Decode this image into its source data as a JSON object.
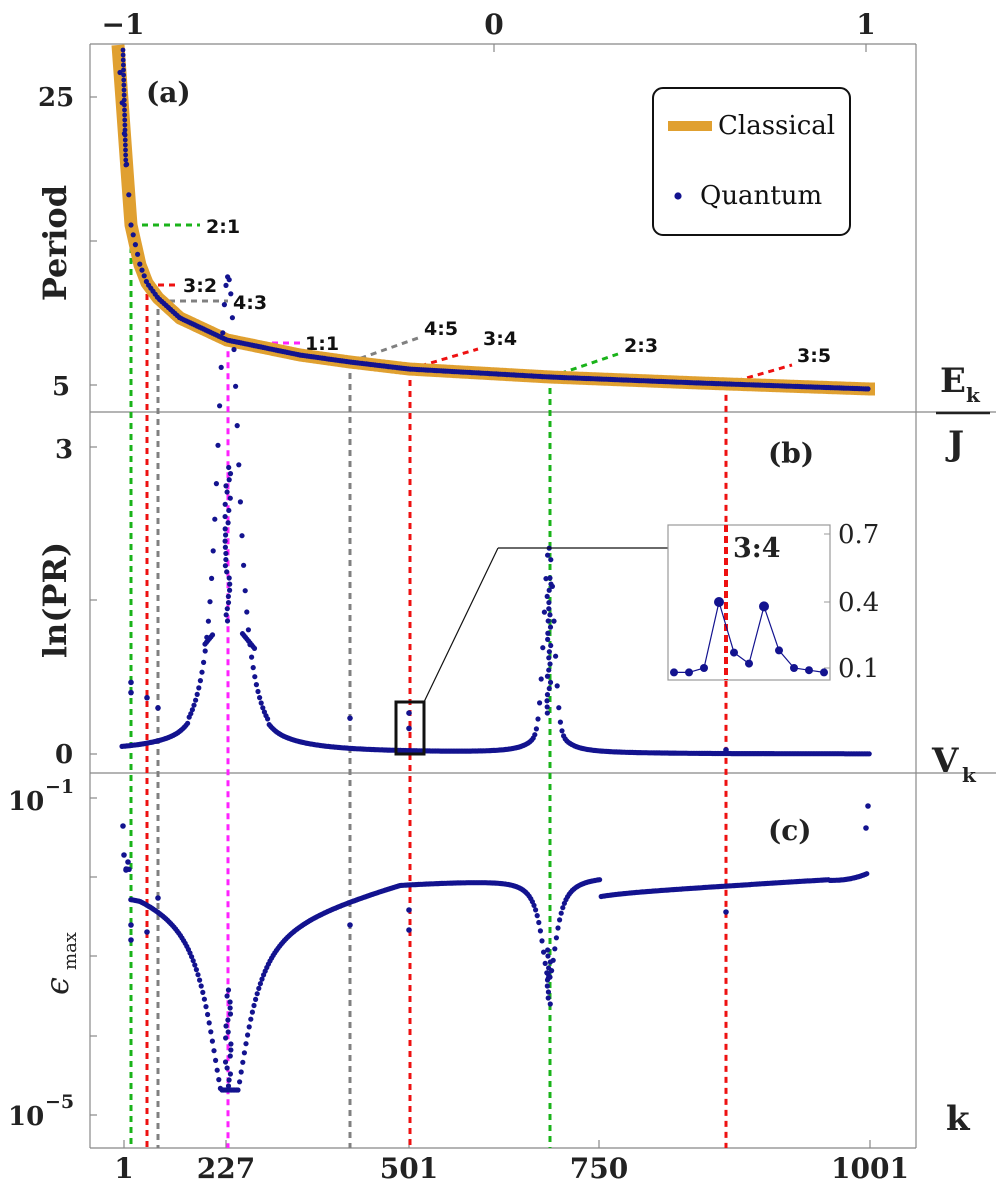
{
  "top_axis": {
    "ticks": [
      "−1",
      "0",
      "1"
    ],
    "values": [
      -1,
      0,
      1
    ]
  },
  "bottom_axis": {
    "ticks": [
      "1",
      "227",
      "501",
      "750",
      "1001"
    ],
    "values": [
      1,
      227,
      501,
      750,
      1001
    ],
    "label": "k"
  },
  "panel_a": {
    "tag": "(a)",
    "ylabel": "Period",
    "yticks": [
      "25",
      "5"
    ],
    "side_label_num": "E",
    "side_label_sub": "k",
    "side_label_den": "J"
  },
  "panel_b": {
    "tag": "(b)",
    "ylabel": "ln(PR)",
    "yticks": [
      "3",
      "0"
    ],
    "side_label": "V",
    "side_label_sub": "k"
  },
  "panel_c": {
    "tag": "(c)",
    "ylabel_main": "ϵ",
    "ylabel_sub": "max",
    "yticks_base": [
      "10",
      "10"
    ],
    "yticks_exp": [
      "−1",
      "−5"
    ]
  },
  "legend": {
    "classical": "Classical",
    "quantum": "Quantum"
  },
  "colors": {
    "classical": "#e0a030",
    "quantum": "#13138f",
    "green": "#1ab31a",
    "red": "#ee1111",
    "gray": "#808080",
    "magenta": "#ff22ff"
  },
  "inset": {
    "label": "3:4",
    "yticks": [
      "0.7",
      "0.4",
      "0.1"
    ],
    "values": [
      0.08,
      0.08,
      0.1,
      0.4,
      0.17,
      0.12,
      0.38,
      0.18,
      0.1,
      0.09,
      0.08
    ]
  },
  "chart_data": [
    {
      "type": "line",
      "panel": "a",
      "ylabel": "Period",
      "series": [
        {
          "name": "Classical"
        },
        {
          "name": "Quantum"
        }
      ],
      "resonances": [
        {
          "label": "2:1",
          "k": 12,
          "period": 15.5,
          "color": "green"
        },
        {
          "label": "3:2",
          "k": 45,
          "period": 10.8,
          "color": "red"
        },
        {
          "label": "4:3",
          "k": 66,
          "period": 9.6,
          "color": "gray"
        },
        {
          "label": "1:1",
          "k": 227,
          "period": 7.6,
          "color": "magenta"
        },
        {
          "label": "4:5",
          "k": 394,
          "period": 6.2,
          "color": "gray"
        },
        {
          "label": "3:4",
          "k": 501,
          "period": 5.7,
          "color": "red"
        },
        {
          "label": "2:3",
          "k": 642,
          "period": 5.2,
          "color": "green"
        },
        {
          "label": "3:5",
          "k": 860,
          "period": 4.9,
          "color": "red"
        }
      ]
    },
    {
      "type": "scatter",
      "panel": "b",
      "ylabel": "ln(PR)",
      "ylim": [
        0,
        3
      ],
      "peaks": [
        {
          "k": 227,
          "value": 2.8
        },
        {
          "k": 642,
          "value": 1.75
        },
        {
          "k": 12,
          "value": 0.7
        },
        {
          "k": 45,
          "value": 0.55
        },
        {
          "k": 501,
          "value": 0.4
        }
      ]
    },
    {
      "type": "scatter",
      "panel": "c",
      "ylabel": "ϵ_max",
      "scale": "log",
      "ylim": [
        1e-05,
        0.1
      ],
      "minima": [
        {
          "k": 227,
          "value": 3e-05
        },
        {
          "k": 642,
          "value": 0.0006
        }
      ]
    }
  ]
}
